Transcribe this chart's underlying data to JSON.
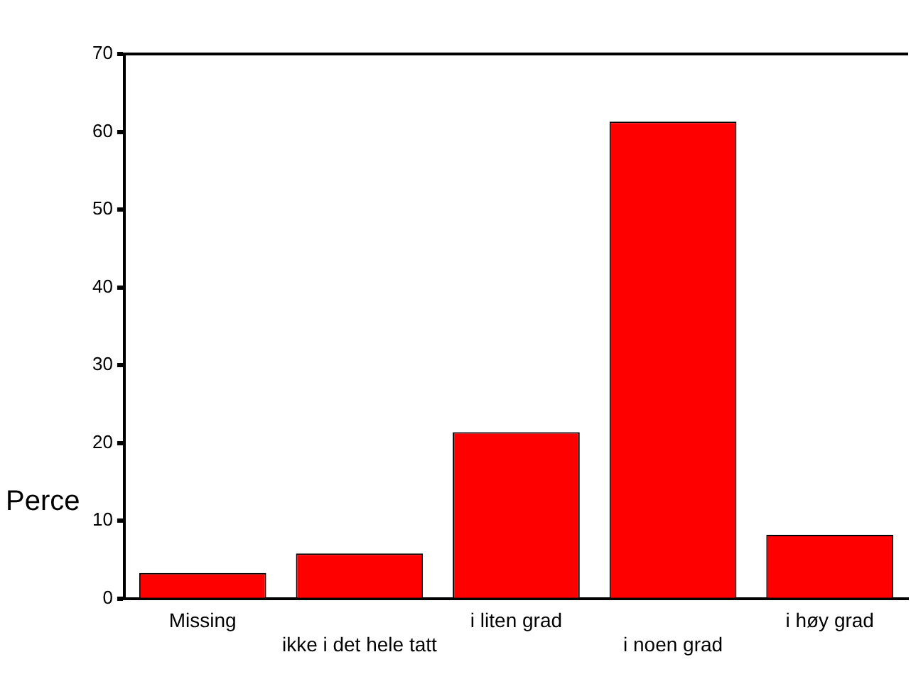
{
  "chart_data": {
    "type": "bar",
    "ylabel": "Perce",
    "categories": [
      "Missing",
      "ikke i det hele tatt",
      "i liten grad",
      "i noen grad",
      "i høy grad"
    ],
    "values": [
      3.3,
      5.8,
      21.4,
      61.3,
      8.2
    ],
    "color": "#ff0000",
    "ylim": [
      0,
      70
    ],
    "yticks": [
      0,
      10,
      20,
      30,
      40,
      50,
      60,
      70
    ],
    "grid": false,
    "legend": false
  }
}
